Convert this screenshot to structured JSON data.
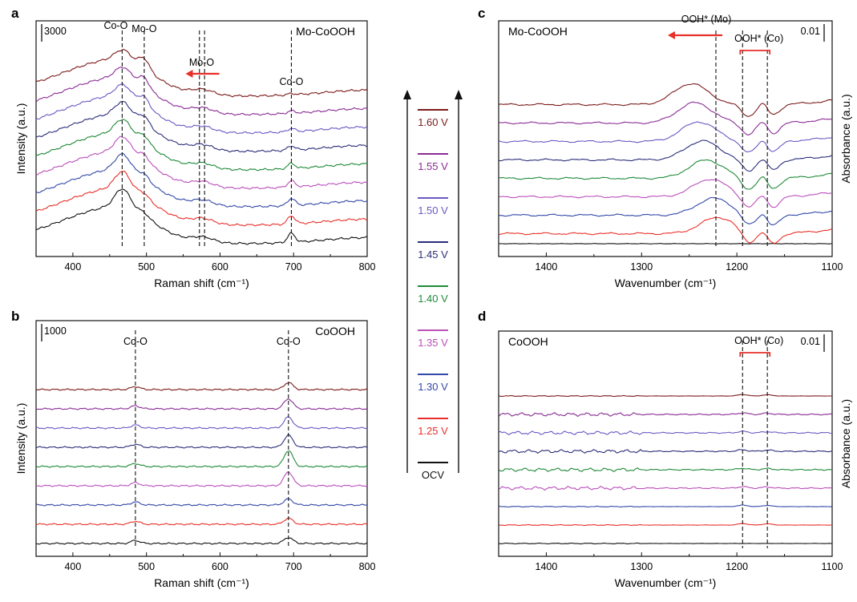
{
  "chart_data": [
    {
      "panel": "a",
      "type": "line",
      "sample_label": "Mo-CoOOH",
      "xlabel": "Raman shift (cm⁻¹)",
      "ylabel": "Intensity (a.u.)",
      "xlim": [
        350,
        800
      ],
      "x_ticks": [
        "400",
        "500",
        "600",
        "700",
        "800"
      ],
      "scale_bar_label": "3000",
      "annotations": [
        {
          "text": "Co-O",
          "x": 467
        },
        {
          "text": "Mo-O",
          "x": 497
        },
        {
          "text": "Mo-O",
          "x": 575,
          "arrow": "left"
        },
        {
          "text": "Co-O",
          "x": 697
        }
      ],
      "dashed_lines_x": [
        467,
        497,
        572,
        579,
        697
      ],
      "series": [
        {
          "name": "OCV",
          "color": "#111111"
        },
        {
          "name": "1.25 V",
          "color": "#e8302a"
        },
        {
          "name": "1.30 V",
          "color": "#3348a8"
        },
        {
          "name": "1.35 V",
          "color": "#bb4fbb"
        },
        {
          "name": "1.40 V",
          "color": "#1f8a38"
        },
        {
          "name": "1.45 V",
          "color": "#2b2e7a"
        },
        {
          "name": "1.50 V",
          "color": "#6a58c4"
        },
        {
          "name": "1.55 V",
          "color": "#8a2c95"
        },
        {
          "name": "1.60 V",
          "color": "#7d1a1a"
        }
      ]
    },
    {
      "panel": "b",
      "type": "line",
      "sample_label": "CoOOH",
      "xlabel": "Raman shift (cm⁻¹)",
      "ylabel": "Intensity (a.u.)",
      "xlim": [
        350,
        800
      ],
      "x_ticks": [
        "400",
        "500",
        "600",
        "700",
        "800"
      ],
      "scale_bar_label": "1000",
      "annotations": [
        {
          "text": "Co-O",
          "x": 485
        },
        {
          "text": "Co-O",
          "x": 693
        }
      ],
      "dashed_lines_x": [
        485,
        693
      ],
      "series": [
        {
          "name": "OCV",
          "color": "#111111"
        },
        {
          "name": "1.25 V",
          "color": "#e8302a"
        },
        {
          "name": "1.30 V",
          "color": "#3348a8"
        },
        {
          "name": "1.35 V",
          "color": "#bb4fbb"
        },
        {
          "name": "1.40 V",
          "color": "#1f8a38"
        },
        {
          "name": "1.45 V",
          "color": "#2b2e7a"
        },
        {
          "name": "1.50 V",
          "color": "#6a58c4"
        },
        {
          "name": "1.55 V",
          "color": "#8a2c95"
        },
        {
          "name": "1.60 V",
          "color": "#7d1a1a"
        }
      ]
    },
    {
      "panel": "c",
      "type": "line",
      "sample_label": "Mo-CoOOH",
      "xlabel": "Wavenumber (cm⁻¹)",
      "ylabel": "Absorbance (a.u.)",
      "xlim": [
        1450,
        1100
      ],
      "x_ticks": [
        "1400",
        "1300",
        "1200",
        "1100"
      ],
      "scale_bar_label": "0.01",
      "annotations": [
        {
          "text": "OOH* (Mo)",
          "x": 1222,
          "arrow": "left"
        },
        {
          "text": "OOH* (Co)",
          "x": 1180,
          "bracket": [
            1194,
            1168
          ]
        }
      ],
      "dashed_lines_x": [
        1222,
        1194,
        1168
      ],
      "series": [
        {
          "name": "OCV",
          "color": "#111111"
        },
        {
          "name": "1.25 V",
          "color": "#e8302a"
        },
        {
          "name": "1.30 V",
          "color": "#3348a8"
        },
        {
          "name": "1.35 V",
          "color": "#bb4fbb"
        },
        {
          "name": "1.40 V",
          "color": "#1f8a38"
        },
        {
          "name": "1.45 V",
          "color": "#2b2e7a"
        },
        {
          "name": "1.50 V",
          "color": "#6a58c4"
        },
        {
          "name": "1.55 V",
          "color": "#8a2c95"
        },
        {
          "name": "1.60 V",
          "color": "#7d1a1a"
        }
      ]
    },
    {
      "panel": "d",
      "type": "line",
      "sample_label": "CoOOH",
      "xlabel": "Wavenumber (cm⁻¹)",
      "ylabel": "Absorbance (a.u.)",
      "xlim": [
        1450,
        1100
      ],
      "x_ticks": [
        "1400",
        "1300",
        "1200",
        "1100"
      ],
      "scale_bar_label": "0.01",
      "annotations": [
        {
          "text": "OOH* (Co)",
          "x": 1180,
          "bracket": [
            1194,
            1168
          ]
        }
      ],
      "dashed_lines_x": [
        1194,
        1168
      ],
      "series": [
        {
          "name": "OCV",
          "color": "#111111"
        },
        {
          "name": "1.25 V",
          "color": "#e8302a"
        },
        {
          "name": "1.30 V",
          "color": "#3348a8"
        },
        {
          "name": "1.35 V",
          "color": "#bb4fbb"
        },
        {
          "name": "1.40 V",
          "color": "#1f8a38"
        },
        {
          "name": "1.45 V",
          "color": "#2b2e7a"
        },
        {
          "name": "1.50 V",
          "color": "#6a58c4"
        },
        {
          "name": "1.55 V",
          "color": "#8a2c95"
        },
        {
          "name": "1.60 V",
          "color": "#7d1a1a"
        }
      ]
    }
  ],
  "shared_legend": {
    "entries": [
      {
        "label": "1.60 V",
        "color": "#7d1a1a"
      },
      {
        "label": "1.55 V",
        "color": "#8a2c95"
      },
      {
        "label": "1.50 V",
        "color": "#6a58c4"
      },
      {
        "label": "1.45 V",
        "color": "#2b2e7a"
      },
      {
        "label": "1.40 V",
        "color": "#1f8a38"
      },
      {
        "label": "1.35 V",
        "color": "#bb4fbb"
      },
      {
        "label": "1.30 V",
        "color": "#3348a8"
      },
      {
        "label": "1.25 V",
        "color": "#e8302a"
      },
      {
        "label": "OCV",
        "color": "#111111"
      }
    ]
  },
  "colors": {
    "arrow_red": "#e8302a",
    "axis": "#111111"
  }
}
